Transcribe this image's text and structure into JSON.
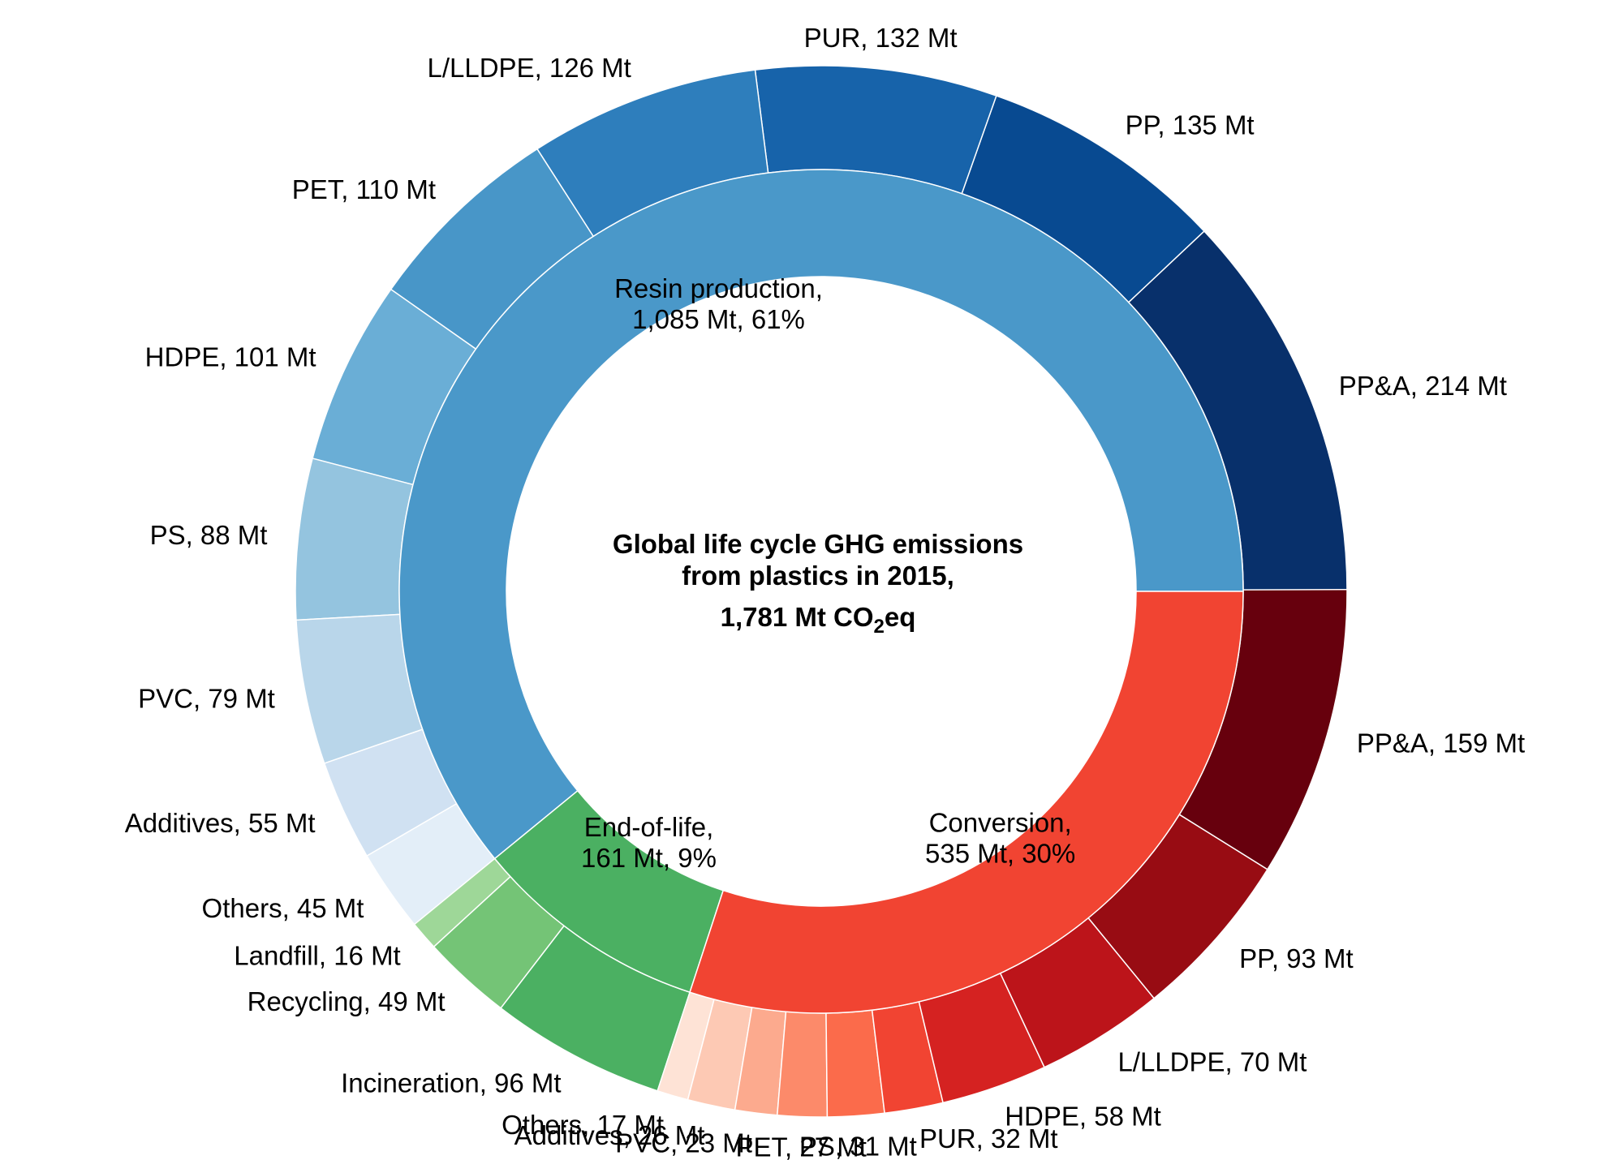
{
  "chart_data": {
    "type": "pie",
    "subtype": "nested-donut",
    "title": [
      "Global life cycle GHG emissions",
      "from plastics in 2015,"
    ],
    "title_total": {
      "prefix": "1,781 Mt CO",
      "subscript": "2",
      "suffix": "eq"
    },
    "inner": [
      {
        "name": "Resin production",
        "value": 1085,
        "label": [
          "Resin production,",
          "1,085 Mt, 61%"
        ],
        "color": "#4a98c9"
      },
      {
        "name": "End-of-life",
        "value": 161,
        "label": [
          "End-of-life,",
          "161 Mt, 9%"
        ],
        "color": "#4bb062"
      },
      {
        "name": "Conversion",
        "value": 535,
        "label": [
          "Conversion,",
          "535 Mt, 30%"
        ],
        "color": "#f14432"
      }
    ],
    "outer": [
      {
        "group": "Resin production",
        "name": "PP&A",
        "value": 214,
        "label": "PP&A, 214 Mt",
        "color": "#08306b"
      },
      {
        "group": "Resin production",
        "name": "PP",
        "value": 135,
        "label": "PP, 135 Mt",
        "color": "#084a91"
      },
      {
        "group": "Resin production",
        "name": "PUR",
        "value": 132,
        "label": "PUR, 132 Mt",
        "color": "#1763aa"
      },
      {
        "group": "Resin production",
        "name": "L/LLDPE",
        "value": 126,
        "label": "L/LLDPE, 126 Mt",
        "color": "#2e7ebc"
      },
      {
        "group": "Resin production",
        "name": "PET",
        "value": 110,
        "label": "PET, 110 Mt",
        "color": "#4896c8"
      },
      {
        "group": "Resin production",
        "name": "HDPE",
        "value": 101,
        "label": "HDPE, 101 Mt",
        "color": "#6aaed6"
      },
      {
        "group": "Resin production",
        "name": "PS",
        "value": 88,
        "label": "PS, 88 Mt",
        "color": "#94c4df"
      },
      {
        "group": "Resin production",
        "name": "PVC",
        "value": 79,
        "label": "PVC, 79 Mt",
        "color": "#b9d6ea"
      },
      {
        "group": "Resin production",
        "name": "Additives",
        "value": 55,
        "label": "Additives, 55 Mt",
        "color": "#d0e1f2"
      },
      {
        "group": "Resin production",
        "name": "Others",
        "value": 45,
        "label": "Others, 45 Mt",
        "color": "#e3eef8"
      },
      {
        "group": "End-of-life",
        "name": "Landfill",
        "value": 16,
        "label": "Landfill, 16 Mt",
        "color": "#9ed798"
      },
      {
        "group": "End-of-life",
        "name": "Recycling",
        "value": 49,
        "label": "Recycling, 49 Mt",
        "color": "#74c476"
      },
      {
        "group": "End-of-life",
        "name": "Incineration",
        "value": 96,
        "label": "Incineration, 96 Mt",
        "color": "#4bb062"
      },
      {
        "group": "Conversion",
        "name": "Others",
        "value": 17,
        "label": "Others, 17 Mt",
        "color": "#fee3d6"
      },
      {
        "group": "Conversion",
        "name": "Additives",
        "value": 26,
        "label": "Additives, 26 Mt",
        "color": "#fdc9b4"
      },
      {
        "group": "Conversion",
        "name": "PVC",
        "value": 23,
        "label": "PVC, 23 Mt",
        "color": "#fcaa8e"
      },
      {
        "group": "Conversion",
        "name": "PET",
        "value": 27,
        "label": "PET, 27 Mt",
        "color": "#fc8a6a"
      },
      {
        "group": "Conversion",
        "name": "PS",
        "value": 31,
        "label": "PS, 31 Mt",
        "color": "#fb6b4b"
      },
      {
        "group": "Conversion",
        "name": "PUR",
        "value": 32,
        "label": "PUR, 32 Mt",
        "color": "#f14432"
      },
      {
        "group": "Conversion",
        "name": "HDPE",
        "value": 58,
        "label": "HDPE, 58 Mt",
        "color": "#d52221"
      },
      {
        "group": "Conversion",
        "name": "L/LLDPE",
        "value": 70,
        "label": "L/LLDPE, 70 Mt",
        "color": "#bc141a"
      },
      {
        "group": "Conversion",
        "name": "PP",
        "value": 93,
        "label": "PP, 93 Mt",
        "color": "#980c13"
      },
      {
        "group": "Conversion",
        "name": "PP&A",
        "value": 159,
        "label": "PP&A, 159 Mt",
        "color": "#67000d"
      }
    ],
    "start_angle_deg": 0,
    "direction": "counterclockwise",
    "legend": "none"
  }
}
